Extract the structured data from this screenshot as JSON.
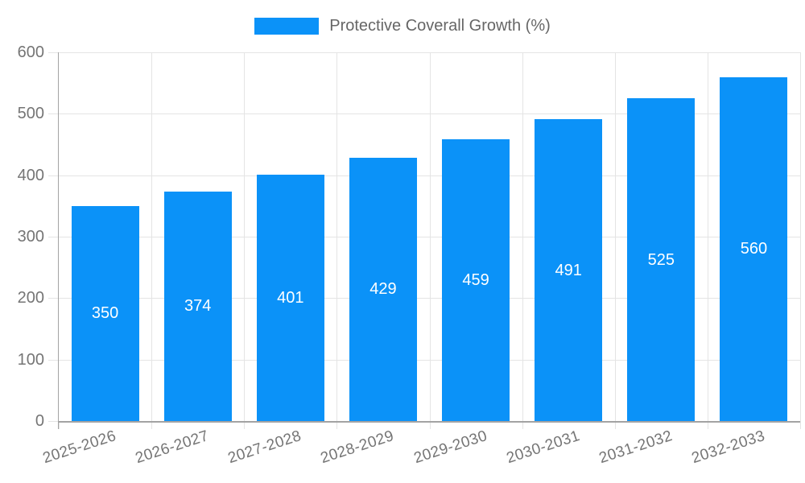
{
  "legend": {
    "label": "Protective Coverall Growth (%)"
  },
  "chart_data": {
    "type": "bar",
    "title": "Protective Coverall Growth (%)",
    "series": [
      {
        "name": "Protective Coverall Growth (%)",
        "values": [
          350,
          374,
          401,
          429,
          459,
          491,
          525,
          560
        ]
      }
    ],
    "categories": [
      "2025-2026",
      "2026-2027",
      "2027-2028",
      "2028-2029",
      "2029-2030",
      "2030-2031",
      "2031-2032",
      "2032-2033"
    ],
    "xlabel": "",
    "ylabel": "",
    "ylim": [
      0,
      600
    ],
    "ytick_step": 100,
    "yticks": [
      0,
      100,
      200,
      300,
      400,
      500,
      600
    ],
    "grid": true,
    "legend_position": "top-center",
    "value_labels": "inside-center",
    "x_label_rotation_deg": -18,
    "colors": {
      "bar": "#0B92F8",
      "bar_label_text": "#FFFFFF",
      "gridline": "#E4E4E4",
      "axis_line": "#A3A3A3",
      "tick_label_text": "#757575",
      "legend_text": "#666666",
      "background": "#FFFFFF"
    }
  }
}
